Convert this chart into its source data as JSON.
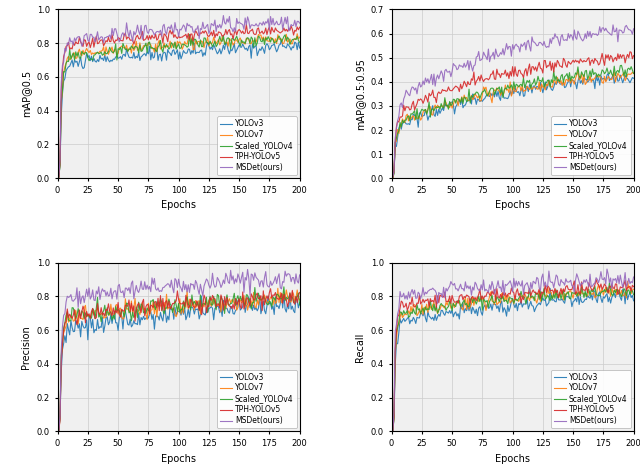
{
  "n_epochs": 200,
  "models": [
    "YOLOv3",
    "YOLOv7",
    "Scaled_YOLOv4",
    "TPH-YOLOv5",
    "MSDet(ours)"
  ],
  "colors": [
    "#1f77b4",
    "#ff7f0e",
    "#2ca02c",
    "#d62728",
    "#9467bd"
  ],
  "linewidths": [
    0.8,
    0.8,
    0.8,
    0.8,
    0.8
  ],
  "ylabels": [
    "mAP@0.5",
    "mAP@0.5:0.95",
    "Precision",
    "Recall"
  ],
  "xlabel": "Epochs",
  "figsize": [
    6.4,
    4.74
  ],
  "dpi": 100,
  "grid_color": "#cccccc",
  "bg_color": "#f0f0f0",
  "legend_fontsize": 5.5,
  "axis_fontsize": 7,
  "tick_fontsize": 6
}
